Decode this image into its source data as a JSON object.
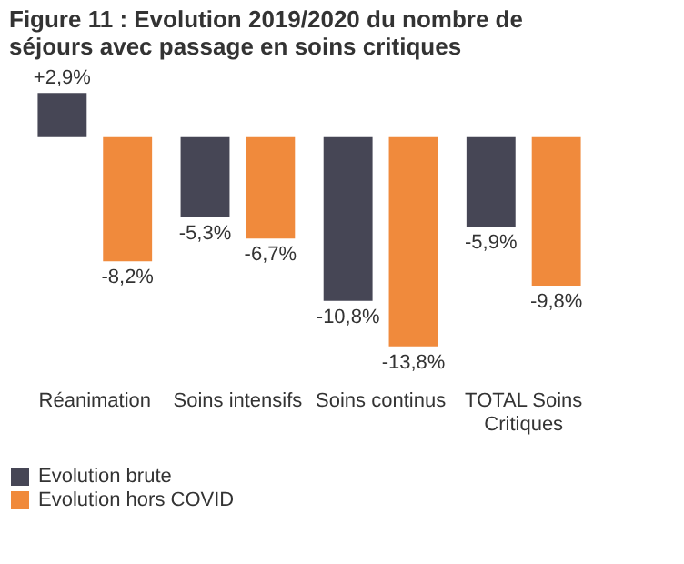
{
  "chart_data": {
    "type": "bar",
    "title": "Figure 11 : Evolution 2019/2020 du nombre de séjours avec passage en soins critiques",
    "categories": [
      "Réanimation",
      "Soins intensifs",
      "Soins continus",
      "TOTAL Soins Critiques"
    ],
    "series": [
      {
        "name": "Evolution brute",
        "color": "#464655",
        "values": [
          2.9,
          -5.3,
          -10.8,
          -5.9
        ],
        "value_labels": [
          "+2,9%",
          "-5,3%",
          "-10,8%",
          "-5,9%"
        ]
      },
      {
        "name": "Evolution hors COVID",
        "color": "#f08a3c",
        "values": [
          -8.2,
          -6.7,
          -13.8,
          -9.8
        ],
        "value_labels": [
          "-8,2%",
          "-6,7%",
          "-13,8%",
          "-9,8%"
        ]
      }
    ],
    "legend": "bottom"
  }
}
